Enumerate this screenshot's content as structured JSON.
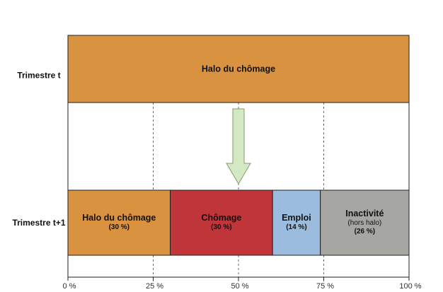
{
  "chart_data": {
    "type": "bar",
    "row_labels": [
      "Trimestre t",
      "Trimestre t+1"
    ],
    "top_bar": {
      "label": "Halo du chômage",
      "value": 100,
      "color": "#d9923f"
    },
    "bottom_segments": [
      {
        "label": "Halo du chômage",
        "lines": [
          "(30 %)"
        ],
        "value": 30,
        "color": "#d9923f"
      },
      {
        "label": "Chômage",
        "lines": [
          "(30 %)"
        ],
        "value": 30,
        "color": "#c0353a"
      },
      {
        "label": "Emploi",
        "lines": [
          "(14 %)"
        ],
        "value": 14,
        "color": "#9bbcdc"
      },
      {
        "label": "Inactivité",
        "lines": [
          "(hors halo)",
          "(26 %)"
        ],
        "value": 26,
        "color": "#a6a6a3"
      }
    ],
    "x_ticks": [
      {
        "value": 0,
        "label": "0 %"
      },
      {
        "value": 25,
        "label": "25 %"
      },
      {
        "value": 50,
        "label": "50 %"
      },
      {
        "value": 75,
        "label": "75 %"
      },
      {
        "value": 100,
        "label": "100 %"
      }
    ],
    "xlim": [
      0,
      100
    ],
    "arrow_color": "#d5e8c4",
    "grid": "dashed vertical lines at 25 %, 50 %, 75 %"
  }
}
